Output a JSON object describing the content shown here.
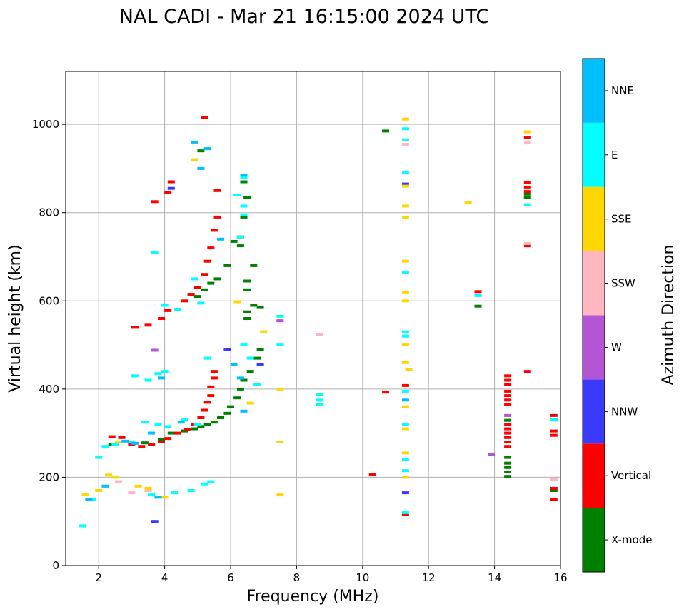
{
  "chart_data": {
    "type": "scatter",
    "title": "NAL CADI - Mar 21 16:15:00 2024 UTC",
    "xlabel": "Frequency (MHz)",
    "ylabel": "Virtual height (km)",
    "xlim": [
      1,
      16
    ],
    "ylim": [
      0,
      1120
    ],
    "xticks": [
      2,
      4,
      6,
      8,
      10,
      12,
      14,
      16
    ],
    "yticks": [
      0,
      200,
      400,
      600,
      800,
      1000
    ],
    "grid": true,
    "colorbar": {
      "label": "Azimuth Direction",
      "categories": [
        {
          "name": "X-mode",
          "color": "#008000"
        },
        {
          "name": "Vertical",
          "color": "#ff0000"
        },
        {
          "name": "NNW",
          "color": "#3a3aff"
        },
        {
          "name": "W",
          "color": "#b455d6"
        },
        {
          "name": "SSW",
          "color": "#ffb6c1"
        },
        {
          "name": "SSE",
          "color": "#ffd700"
        },
        {
          "name": "E",
          "color": "#00ffff"
        },
        {
          "name": "NNE",
          "color": "#00bfff"
        }
      ]
    },
    "series": [
      {
        "name": "X-mode",
        "points": [
          [
            2.4,
            275
          ],
          [
            3.0,
            280
          ],
          [
            3.4,
            278
          ],
          [
            3.9,
            285
          ],
          [
            4.2,
            300
          ],
          [
            4.6,
            305
          ],
          [
            4.9,
            310
          ],
          [
            5.1,
            315
          ],
          [
            5.3,
            320
          ],
          [
            5.5,
            325
          ],
          [
            5.7,
            335
          ],
          [
            5.9,
            345
          ],
          [
            6.0,
            360
          ],
          [
            6.2,
            380
          ],
          [
            6.3,
            400
          ],
          [
            6.4,
            420
          ],
          [
            6.6,
            440
          ],
          [
            6.8,
            470
          ],
          [
            6.9,
            490
          ],
          [
            5.0,
            610
          ],
          [
            5.2,
            625
          ],
          [
            5.4,
            640
          ],
          [
            5.6,
            650
          ],
          [
            6.1,
            735
          ],
          [
            6.3,
            745
          ],
          [
            6.4,
            790
          ],
          [
            6.5,
            835
          ],
          [
            6.4,
            870
          ],
          [
            6.5,
            575
          ],
          [
            6.5,
            560
          ],
          [
            6.5,
            645
          ],
          [
            6.5,
            625
          ],
          [
            6.7,
            590
          ],
          [
            6.9,
            585
          ],
          [
            5.1,
            940
          ],
          [
            6.3,
            725
          ],
          [
            6.7,
            680
          ],
          [
            5.9,
            680
          ],
          [
            10.7,
            985
          ],
          [
            13.5,
            588
          ],
          [
            14.4,
            245
          ],
          [
            14.4,
            232
          ],
          [
            14.4,
            222
          ],
          [
            14.4,
            212
          ],
          [
            14.4,
            202
          ],
          [
            14.4,
            329
          ],
          [
            15.0,
            835
          ],
          [
            15.0,
            842
          ],
          [
            15.8,
            170
          ],
          [
            15.8,
            330
          ]
        ]
      },
      {
        "name": "Vertical",
        "points": [
          [
            2.4,
            292
          ],
          [
            2.7,
            290
          ],
          [
            3.0,
            275
          ],
          [
            3.3,
            270
          ],
          [
            3.6,
            275
          ],
          [
            3.9,
            280
          ],
          [
            4.1,
            288
          ],
          [
            4.4,
            300
          ],
          [
            4.7,
            308
          ],
          [
            4.9,
            320
          ],
          [
            5.1,
            335
          ],
          [
            5.2,
            352
          ],
          [
            5.3,
            370
          ],
          [
            5.4,
            385
          ],
          [
            5.4,
            405
          ],
          [
            5.5,
            425
          ],
          [
            5.5,
            440
          ],
          [
            3.1,
            540
          ],
          [
            3.5,
            545
          ],
          [
            3.9,
            560
          ],
          [
            4.1,
            578
          ],
          [
            4.6,
            600
          ],
          [
            4.8,
            615
          ],
          [
            5.0,
            630
          ],
          [
            5.2,
            660
          ],
          [
            5.3,
            690
          ],
          [
            5.4,
            720
          ],
          [
            5.5,
            760
          ],
          [
            5.6,
            790
          ],
          [
            3.7,
            825
          ],
          [
            4.1,
            845
          ],
          [
            4.2,
            870
          ],
          [
            5.6,
            850
          ],
          [
            5.2,
            1015
          ],
          [
            10.7,
            393
          ],
          [
            10.3,
            207
          ],
          [
            11.3,
            115
          ],
          [
            11.3,
            408
          ],
          [
            13.5,
            621
          ],
          [
            14.4,
            430
          ],
          [
            14.4,
            420
          ],
          [
            14.4,
            410
          ],
          [
            14.4,
            395
          ],
          [
            14.4,
            385
          ],
          [
            14.4,
            375
          ],
          [
            14.4,
            365
          ],
          [
            14.4,
            320
          ],
          [
            14.4,
            310
          ],
          [
            14.4,
            300
          ],
          [
            14.4,
            290
          ],
          [
            14.4,
            280
          ],
          [
            14.4,
            270
          ],
          [
            15.0,
            440
          ],
          [
            15.0,
            725
          ],
          [
            15.0,
            848
          ],
          [
            15.0,
            858
          ],
          [
            15.0,
            868
          ],
          [
            15.0,
            970
          ],
          [
            15.8,
            340
          ],
          [
            15.8,
            305
          ],
          [
            15.8,
            295
          ],
          [
            15.8,
            150
          ],
          [
            15.8,
            175
          ]
        ]
      },
      {
        "name": "NNW",
        "points": [
          [
            3.7,
            100
          ],
          [
            11.3,
            865
          ],
          [
            11.3,
            165
          ],
          [
            6.9,
            455
          ],
          [
            4.2,
            855
          ],
          [
            5.9,
            490
          ]
        ]
      },
      {
        "name": "W",
        "points": [
          [
            3.7,
            488
          ],
          [
            7.5,
            555
          ],
          [
            13.9,
            252
          ],
          [
            14.4,
            340
          ]
        ]
      },
      {
        "name": "SSW",
        "points": [
          [
            2.2,
            180
          ],
          [
            2.6,
            190
          ],
          [
            3.0,
            165
          ],
          [
            3.5,
            170
          ],
          [
            8.7,
            523
          ],
          [
            11.3,
            955
          ],
          [
            15.0,
            730
          ],
          [
            15.0,
            958
          ],
          [
            15.8,
            195
          ]
        ]
      },
      {
        "name": "SSE",
        "points": [
          [
            1.6,
            160
          ],
          [
            2.0,
            170
          ],
          [
            2.3,
            205
          ],
          [
            2.5,
            200
          ],
          [
            2.6,
            280
          ],
          [
            3.2,
            180
          ],
          [
            3.5,
            175
          ],
          [
            4.0,
            155
          ],
          [
            4.9,
            920
          ],
          [
            6.2,
            598
          ],
          [
            6.6,
            368
          ],
          [
            7.0,
            530
          ],
          [
            7.5,
            160
          ],
          [
            7.5,
            280
          ],
          [
            7.5,
            400
          ],
          [
            11.3,
            1012
          ],
          [
            11.3,
            790
          ],
          [
            11.3,
            815
          ],
          [
            11.3,
            860
          ],
          [
            11.3,
            690
          ],
          [
            11.3,
            620
          ],
          [
            11.3,
            600
          ],
          [
            11.3,
            500
          ],
          [
            11.3,
            460
          ],
          [
            11.3,
            360
          ],
          [
            11.3,
            310
          ],
          [
            11.3,
            255
          ],
          [
            11.3,
            200
          ],
          [
            11.4,
            445
          ],
          [
            13.2,
            822
          ],
          [
            15.0,
            983
          ]
        ]
      },
      {
        "name": "E",
        "points": [
          [
            1.5,
            90
          ],
          [
            1.8,
            150
          ],
          [
            2.0,
            245
          ],
          [
            2.2,
            270
          ],
          [
            2.5,
            275
          ],
          [
            3.0,
            280
          ],
          [
            3.4,
            325
          ],
          [
            3.8,
            320
          ],
          [
            4.1,
            315
          ],
          [
            4.6,
            330
          ],
          [
            5.0,
            320
          ],
          [
            5.2,
            185
          ],
          [
            5.4,
            190
          ],
          [
            3.6,
            160
          ],
          [
            4.3,
            165
          ],
          [
            4.8,
            170
          ],
          [
            3.1,
            430
          ],
          [
            3.5,
            420
          ],
          [
            3.8,
            435
          ],
          [
            4.0,
            440
          ],
          [
            3.7,
            710
          ],
          [
            4.0,
            590
          ],
          [
            4.4,
            580
          ],
          [
            4.9,
            650
          ],
          [
            5.1,
            595
          ],
          [
            5.3,
            470
          ],
          [
            6.2,
            840
          ],
          [
            6.4,
            880
          ],
          [
            6.4,
            815
          ],
          [
            6.4,
            795
          ],
          [
            6.3,
            745
          ],
          [
            6.4,
            500
          ],
          [
            6.6,
            470
          ],
          [
            6.8,
            410
          ],
          [
            7.5,
            565
          ],
          [
            7.5,
            500
          ],
          [
            8.7,
            387
          ],
          [
            8.7,
            375
          ],
          [
            8.7,
            365
          ],
          [
            11.3,
            990
          ],
          [
            11.3,
            965
          ],
          [
            11.3,
            890
          ],
          [
            11.3,
            665
          ],
          [
            11.3,
            530
          ],
          [
            11.3,
            520
          ],
          [
            11.3,
            395
          ],
          [
            11.3,
            320
          ],
          [
            11.3,
            240
          ],
          [
            11.3,
            215
          ],
          [
            11.3,
            120
          ],
          [
            13.5,
            612
          ],
          [
            15.0,
            818
          ],
          [
            15.8,
            330
          ]
        ]
      },
      {
        "name": "NNE",
        "points": [
          [
            1.7,
            150
          ],
          [
            2.2,
            180
          ],
          [
            2.8,
            282
          ],
          [
            3.1,
            277
          ],
          [
            3.6,
            300
          ],
          [
            3.8,
            155
          ],
          [
            4.5,
            325
          ],
          [
            5.1,
            900
          ],
          [
            4.9,
            960
          ],
          [
            5.3,
            945
          ],
          [
            5.7,
            740
          ],
          [
            6.1,
            455
          ],
          [
            6.3,
            425
          ],
          [
            6.4,
            350
          ],
          [
            6.4,
            885
          ],
          [
            11.3,
            375
          ],
          [
            3.9,
            425
          ],
          [
            3.8,
            155
          ]
        ]
      }
    ]
  }
}
